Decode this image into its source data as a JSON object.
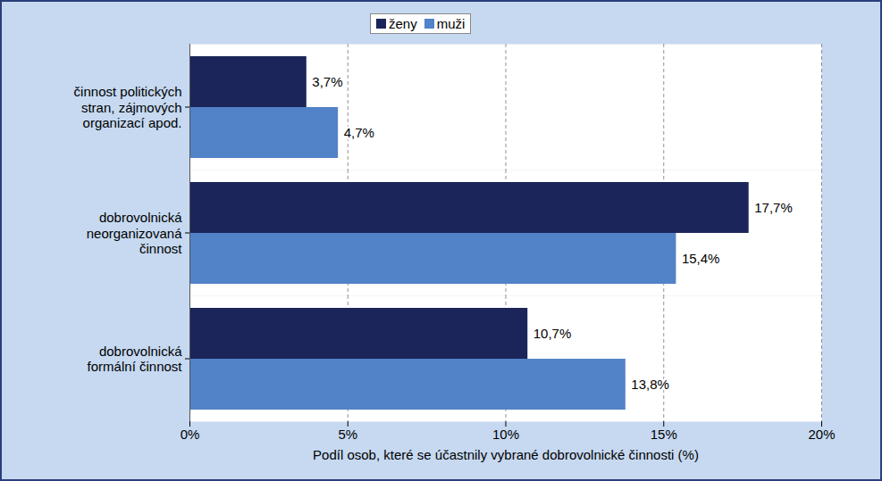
{
  "chart_data": {
    "type": "bar",
    "orientation": "horizontal",
    "categories": [
      "činnost politických stran, zájmových organizací apod.",
      "dobrovolnická neorganizovaná činnost",
      "dobrovolnická formální činnost"
    ],
    "series": [
      {
        "name": "ženy",
        "color": "#1b2559",
        "values": [
          3.7,
          17.7,
          10.7
        ],
        "value_labels": [
          "3,7%",
          "17,7%",
          "10,7%"
        ]
      },
      {
        "name": "muži",
        "color": "#5282c8",
        "values": [
          4.7,
          15.4,
          13.8
        ],
        "value_labels": [
          "4,7%",
          "15,4%",
          "13,8%"
        ]
      }
    ],
    "x_label": "Podíl osob, které se účastnily vybrané dobrovolnické činnosti (%)",
    "xlim": [
      0,
      20
    ],
    "xticks": [
      {
        "value": 0,
        "label": "0%"
      },
      {
        "value": 5,
        "label": "5%"
      },
      {
        "value": 10,
        "label": "10%"
      },
      {
        "value": 15,
        "label": "15%"
      },
      {
        "value": 20,
        "label": "20%"
      }
    ],
    "grid": true,
    "legend": "top",
    "data_labels": true
  }
}
